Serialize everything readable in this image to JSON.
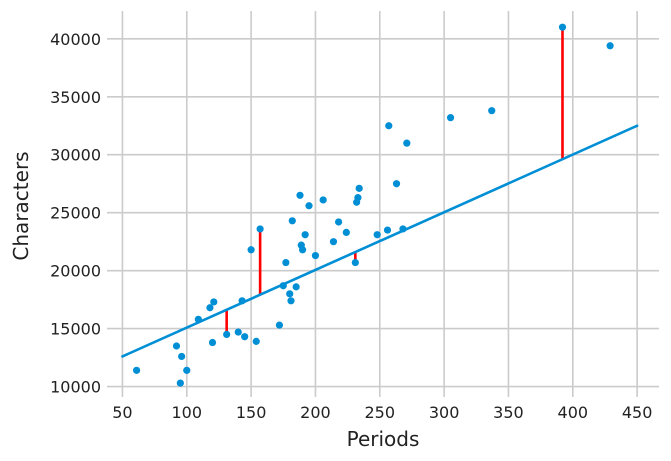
{
  "chart_data": {
    "type": "scatter",
    "xlabel": "Periods",
    "ylabel": "Characters",
    "xlim": [
      38,
      467
    ],
    "ylim": [
      9100,
      42400
    ],
    "xticks": [
      50,
      100,
      150,
      200,
      250,
      300,
      350,
      400,
      450
    ],
    "yticks": [
      10000,
      15000,
      20000,
      25000,
      30000,
      35000,
      40000
    ],
    "xtick_labels": [
      "50",
      "100",
      "150",
      "200",
      "250",
      "300",
      "350",
      "400",
      "450"
    ],
    "ytick_labels": [
      "10000",
      "15000",
      "20000",
      "25000",
      "30000",
      "35000",
      "40000"
    ],
    "grid": true,
    "colors": {
      "points": "#008fd5",
      "fit_line": "#008fd5",
      "residuals": "#ff0000",
      "grid": "#cbcbcb"
    },
    "points": [
      [
        61,
        11400
      ],
      [
        92,
        13500
      ],
      [
        95,
        10300
      ],
      [
        96,
        12600
      ],
      [
        100,
        11400
      ],
      [
        109,
        15800
      ],
      [
        118,
        16800
      ],
      [
        120,
        13800
      ],
      [
        121,
        17300
      ],
      [
        131,
        14500
      ],
      [
        140,
        14700
      ],
      [
        143,
        17400
      ],
      [
        145,
        14300
      ],
      [
        150,
        21800
      ],
      [
        154,
        13900
      ],
      [
        157,
        23600
      ],
      [
        172,
        15300
      ],
      [
        175,
        18700
      ],
      [
        177,
        20700
      ],
      [
        180,
        18000
      ],
      [
        181,
        17400
      ],
      [
        182,
        24300
      ],
      [
        185,
        18600
      ],
      [
        188,
        26500
      ],
      [
        189,
        22200
      ],
      [
        190,
        21800
      ],
      [
        192,
        23100
      ],
      [
        195,
        25600
      ],
      [
        200,
        21300
      ],
      [
        206,
        26100
      ],
      [
        214,
        22500
      ],
      [
        218,
        24200
      ],
      [
        224,
        23300
      ],
      [
        231,
        20700
      ],
      [
        232,
        25900
      ],
      [
        233,
        26300
      ],
      [
        234,
        27100
      ],
      [
        248,
        23100
      ],
      [
        256,
        23500
      ],
      [
        257,
        32500
      ],
      [
        263,
        27500
      ],
      [
        268,
        23600
      ],
      [
        271,
        31000
      ],
      [
        305,
        33200
      ],
      [
        337,
        33800
      ],
      [
        392,
        41000
      ],
      [
        429,
        39400
      ]
    ],
    "fit_line": {
      "x": [
        50,
        450
      ],
      "y": [
        12600,
        32500
      ]
    },
    "residual_segments": [
      {
        "x": 131,
        "y_point": 14500,
        "y_fit": 16580
      },
      {
        "x": 157,
        "y_point": 23600,
        "y_fit": 17880
      },
      {
        "x": 231,
        "y_point": 20700,
        "y_fit": 21600
      },
      {
        "x": 392,
        "y_point": 41000,
        "y_fit": 29600
      }
    ]
  }
}
